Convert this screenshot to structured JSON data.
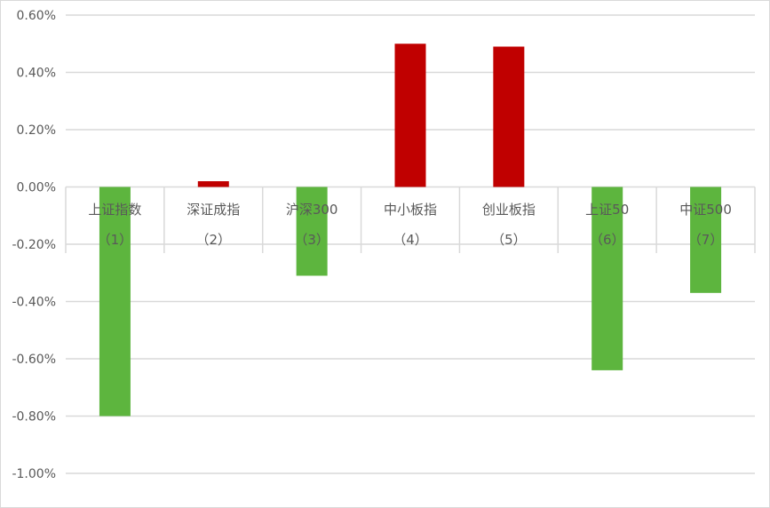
{
  "chart_data": {
    "type": "bar",
    "title": "",
    "xlabel": "",
    "ylabel": "",
    "categories": [
      {
        "line1": "上证指数",
        "line2": "（1）"
      },
      {
        "line1": "深证成指",
        "line2": "（2）"
      },
      {
        "line1": "沪深300",
        "line2": "（3）"
      },
      {
        "line1": "中小板指",
        "line2": "（4）"
      },
      {
        "line1": "创业板指",
        "line2": "（5）"
      },
      {
        "line1": "上证50",
        "line2": "（6）"
      },
      {
        "line1": "中证500",
        "line2": "（7）"
      }
    ],
    "values": [
      -0.8,
      0.02,
      -0.31,
      0.5,
      0.49,
      -0.64,
      -0.37
    ],
    "ylim": [
      -1.0,
      0.6
    ],
    "yticks": [
      {
        "value": 0.6,
        "label": "0.60%"
      },
      {
        "value": 0.4,
        "label": "0.40%"
      },
      {
        "value": 0.2,
        "label": "0.20%"
      },
      {
        "value": 0.0,
        "label": "0.00%"
      },
      {
        "value": -0.2,
        "label": "-0.20%"
      },
      {
        "value": -0.4,
        "label": "-0.40%"
      },
      {
        "value": -0.6,
        "label": "-0.60%"
      },
      {
        "value": -0.8,
        "label": "-0.80%"
      },
      {
        "value": -1.0,
        "label": "-1.00%"
      }
    ],
    "grid": true,
    "legend": "none",
    "colors": {
      "positive": "#C00000",
      "negative": "#5DB53E",
      "grid": "#D9D9D9",
      "text": "#595959"
    }
  }
}
